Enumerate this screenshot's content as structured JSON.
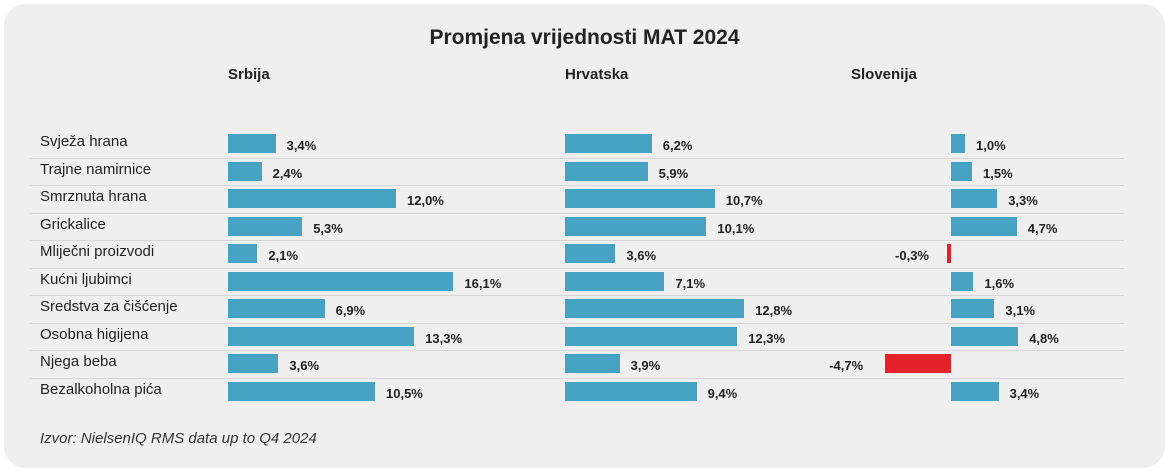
{
  "chart_data": {
    "type": "bar",
    "orientation": "horizontal",
    "title": "Promjena vrijednosti MAT 2024",
    "categories": [
      "Svježa hrana",
      "Trajne namirnice",
      "Smrznuta hrana",
      "Grickalice",
      "Mliječni proizvodi",
      "Kućni ljubimci",
      "Sredstva za čišćenje",
      "Osobna higijena",
      "Njega beba",
      "Bezalkoholna pića"
    ],
    "series": [
      {
        "name": "Srbija",
        "values": [
          3.4,
          2.4,
          12.0,
          5.3,
          2.1,
          16.1,
          6.9,
          13.3,
          3.6,
          10.5
        ],
        "labels": [
          "3,4%",
          "2,4%",
          "12,0%",
          "5,3%",
          "2,1%",
          "16,1%",
          "6,9%",
          "13,3%",
          "3,6%",
          "10,5%"
        ]
      },
      {
        "name": "Hrvatska",
        "values": [
          6.2,
          5.9,
          10.7,
          10.1,
          3.6,
          7.1,
          12.8,
          12.3,
          3.9,
          9.4
        ],
        "labels": [
          "6,2%",
          "5,9%",
          "10,7%",
          "10,1%",
          "3,6%",
          "7,1%",
          "12,8%",
          "12,3%",
          "3,9%",
          "9,4%"
        ]
      },
      {
        "name": "Slovenija",
        "values": [
          1.0,
          1.5,
          3.3,
          4.7,
          -0.3,
          1.6,
          3.1,
          4.8,
          -4.7,
          3.4
        ],
        "labels": [
          "1,0%",
          "1,5%",
          "3,3%",
          "4,7%",
          "-0,3%",
          "1,6%",
          "3,1%",
          "4,8%",
          "-4,7%",
          "3,4%"
        ]
      }
    ],
    "colors": {
      "positive": "#47a3c3",
      "negative": "#e4202b"
    },
    "source": "Izvor: NielsenIQ RMS data up to Q4 2024"
  }
}
